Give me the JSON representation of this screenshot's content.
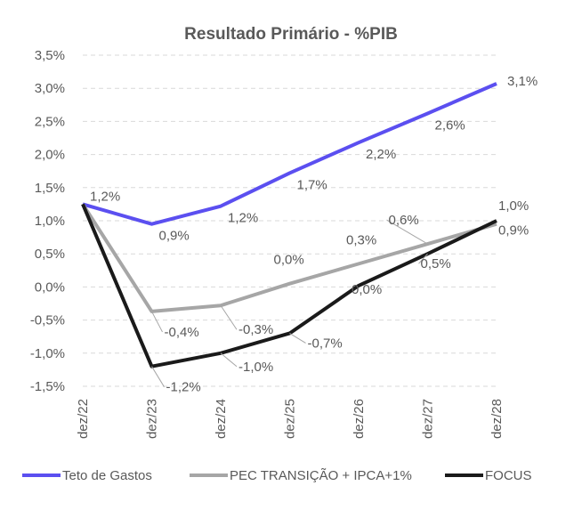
{
  "chart_data": {
    "type": "line",
    "title": "Resultado Primário - %PIB",
    "xlabel": "",
    "ylabel": "",
    "categories": [
      "dez/22",
      "dez/23",
      "dez/24",
      "dez/25",
      "dez/26",
      "dez/27",
      "dez/28"
    ],
    "ylim": [
      -1.5,
      3.5
    ],
    "yticks": [
      "3,5%",
      "3,0%",
      "2,5%",
      "2,0%",
      "1,5%",
      "1,0%",
      "0,5%",
      "0,0%",
      "-0,5%",
      "-1,0%",
      "-1,5%"
    ],
    "ytick_values": [
      3.5,
      3.0,
      2.5,
      2.0,
      1.5,
      1.0,
      0.5,
      0.0,
      -0.5,
      -1.0,
      -1.5
    ],
    "grid": true,
    "legend_position": "bottom",
    "series": [
      {
        "name": "Teto de Gastos",
        "color": "#5b4ff0",
        "values": [
          1.25,
          0.95,
          1.22,
          1.72,
          2.18,
          2.62,
          3.07
        ],
        "labels": [
          "1,2%",
          "0,9%",
          "1,2%",
          "1,7%",
          "2,2%",
          "2,6%",
          "3,1%"
        ]
      },
      {
        "name": "PEC TRANSIÇÃO + IPCA+1%",
        "color": "#a6a6a6",
        "values": [
          1.25,
          -0.37,
          -0.28,
          0.05,
          0.35,
          0.65,
          0.95
        ],
        "labels": [
          "",
          "-0,4%",
          "-0,3%",
          "0,0%",
          "0,3%",
          "0,6%",
          "0,9%"
        ]
      },
      {
        "name": "FOCUS",
        "color": "#1a1a1a",
        "values": [
          1.25,
          -1.2,
          -1.0,
          -0.7,
          0.02,
          0.5,
          1.0
        ],
        "labels": [
          "",
          "-1,2%",
          "-1,0%",
          "-0,7%",
          "0,0%",
          "0,5%",
          "1,0%"
        ]
      }
    ]
  }
}
